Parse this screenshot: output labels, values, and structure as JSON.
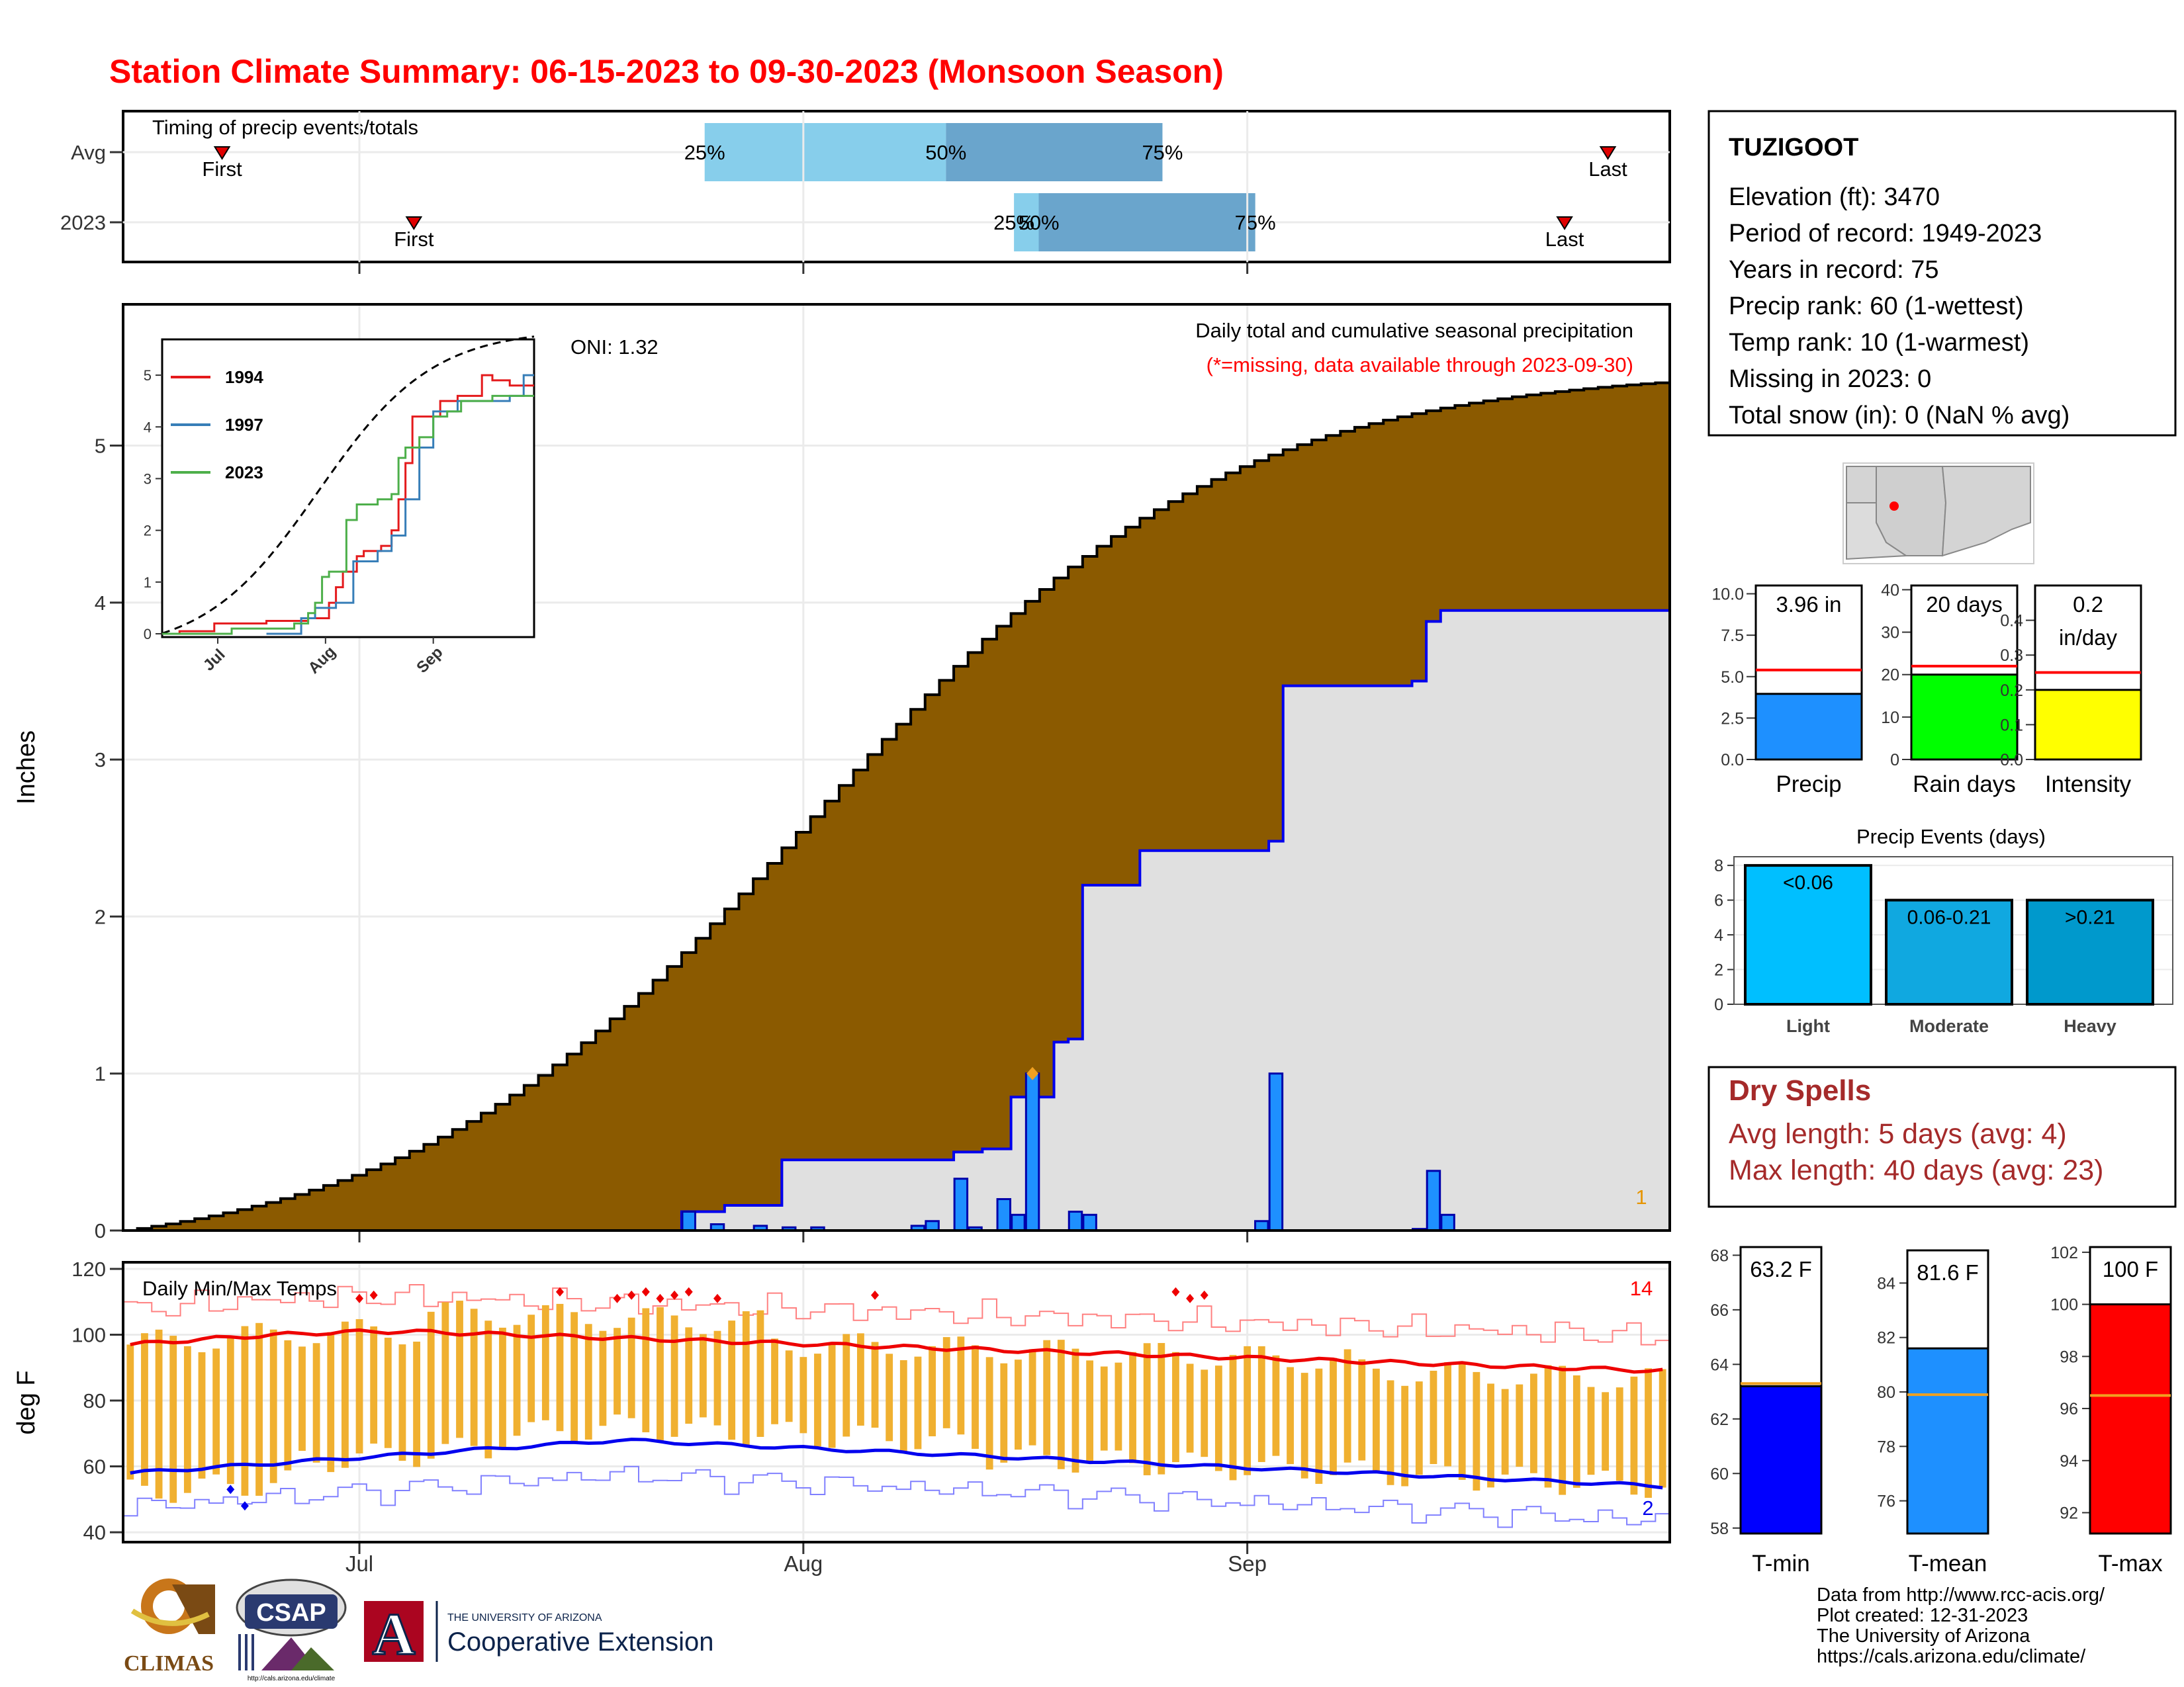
{
  "title": "Station Climate Summary: 06-15-2023 to 09-30-2023 (Monsoon Season)",
  "colors": {
    "title_red": "#ff0000",
    "precip_brown": "#8b5a00",
    "precip_fill_grey": "#e0e0e0",
    "obs_blue": "#1e90ff",
    "line_blue": "#0000ee",
    "temp_bar": "#f0b030",
    "avg_max_red": "#ee0000",
    "dark_red": "#a52a2a"
  },
  "timing": {
    "title": "Timing of precip events/totals",
    "rows": [
      {
        "label": "Avg",
        "first_day": 16,
        "p25_day": 94,
        "p50_day": 133,
        "p75_day": 168,
        "last_day": 240,
        "p25_label": "25%",
        "p50_label": "50%",
        "p75_label": "75%",
        "first_label": "First",
        "last_label": "Last"
      },
      {
        "label": "2023",
        "first_day": 47,
        "p25_day": 144,
        "p50_day": 148,
        "p75_day": 183,
        "last_day": 233,
        "p25_label": "25%",
        "p50_label": "50%",
        "p75_label": "75%",
        "first_label": "First",
        "last_label": "Last"
      }
    ]
  },
  "precip_panel": {
    "ylabel": "Inches",
    "header": "Daily total and cumulative seasonal precipitation",
    "subheader": "(*=missing, data available through 2023-09-30)",
    "oni": "ONI: 1.32",
    "corner_count": "1",
    "month_labels": [
      "Jul",
      "Aug",
      "Sep"
    ],
    "month_day_index": [
      16,
      47,
      78
    ],
    "yticks": [
      0,
      1,
      2,
      3,
      4,
      5
    ],
    "ylim": [
      0,
      5.9
    ],
    "avg_cum_end": 5.4,
    "obs_cum_steps": [
      [
        0,
        0
      ],
      [
        39,
        0.12
      ],
      [
        42,
        0.16
      ],
      [
        46,
        0.45
      ],
      [
        55,
        0.45
      ],
      [
        58,
        0.5
      ],
      [
        60,
        0.52
      ],
      [
        62,
        0.85
      ],
      [
        65,
        1.2
      ],
      [
        66,
        1.22
      ],
      [
        67,
        2.2
      ],
      [
        70,
        2.2
      ],
      [
        71,
        2.42
      ],
      [
        79,
        2.42
      ],
      [
        80,
        2.48
      ],
      [
        81,
        3.47
      ],
      [
        89,
        3.47
      ],
      [
        90,
        3.5
      ],
      [
        91,
        3.88
      ],
      [
        92,
        3.95
      ],
      [
        106,
        3.95
      ]
    ],
    "daily_bars": [
      [
        39,
        0.12
      ],
      [
        41,
        0.04
      ],
      [
        44,
        0.03
      ],
      [
        46,
        0.02
      ],
      [
        48,
        0.02
      ],
      [
        55,
        0.03
      ],
      [
        56,
        0.06
      ],
      [
        58,
        0.33
      ],
      [
        59,
        0.02
      ],
      [
        61,
        0.2
      ],
      [
        62,
        0.1
      ],
      [
        63,
        1.0
      ],
      [
        66,
        0.12
      ],
      [
        67,
        0.1
      ],
      [
        79,
        0.06
      ],
      [
        80,
        1.0
      ],
      [
        90,
        0.01
      ],
      [
        91,
        0.38
      ],
      [
        92,
        0.1
      ]
    ],
    "max_marker_day": 63
  },
  "inset": {
    "yticks": [
      0,
      1,
      2,
      3,
      4,
      5
    ],
    "xticks": [
      "Jul",
      "Aug",
      "Sep"
    ],
    "legend": [
      {
        "name": "1994",
        "color": "#e41a1c"
      },
      {
        "name": "1997",
        "color": "#377eb8"
      },
      {
        "name": "2023",
        "color": "#4daf4a"
      }
    ]
  },
  "temp_panel": {
    "ylabel": "deg F",
    "title": "Daily Min/Max Temps",
    "yticks": [
      40,
      60,
      80,
      100,
      120
    ],
    "ylim": [
      37,
      122
    ],
    "record_high_count": "14",
    "record_low_count": "2",
    "avg_max_start": 97,
    "avg_max_peak": 101,
    "avg_max_end": 89,
    "avg_min_start": 58,
    "avg_min_peak": 68,
    "avg_min_end": 54
  },
  "station": {
    "name": "TUZIGOOT",
    "lines": [
      "Elevation (ft): 3470",
      "Period of record: 1949-2023",
      "Years in record: 75",
      "Precip rank: 60 (1-wettest)",
      "Temp rank: 10 (1-warmest)",
      "Missing in 2023: 0",
      "Total snow (in): 0 (NaN % avg)"
    ]
  },
  "gauges": [
    {
      "label": "Precip",
      "value_text": "3.96 in",
      "value": 3.96,
      "avg": 5.4,
      "ymin": 0,
      "ymax": 10.5,
      "ticks": [
        "0.0",
        "2.5",
        "5.0",
        "7.5",
        "10.0"
      ],
      "tickvals": [
        0,
        2.5,
        5,
        7.5,
        10
      ],
      "color": "#1e90ff"
    },
    {
      "label": "Rain days",
      "value_text": "20 days",
      "value": 20,
      "avg": 22,
      "ymin": 0,
      "ymax": 41,
      "ticks": [
        "0",
        "10",
        "20",
        "30",
        "40"
      ],
      "tickvals": [
        0,
        10,
        20,
        30,
        40
      ],
      "color": "#00ff00"
    },
    {
      "label": "Intensity",
      "value_text": "0.2",
      "value_text2": "in/day",
      "value": 0.2,
      "avg": 0.25,
      "ymin": 0,
      "ymax": 0.5,
      "ticks": [
        "0.0",
        "0.1",
        "0.2",
        "0.3",
        "0.4"
      ],
      "tickvals": [
        0,
        0.1,
        0.2,
        0.3,
        0.4
      ],
      "color": "#ffff00"
    }
  ],
  "events": {
    "title": "Precip Events (days)",
    "yticks": [
      0,
      2,
      4,
      6,
      8
    ],
    "bars": [
      {
        "category": "Light",
        "label": "<0.06",
        "value": 8,
        "color": "#00bfff"
      },
      {
        "category": "Moderate",
        "label": "0.06-0.21",
        "value": 6,
        "color": "#10a8e0"
      },
      {
        "category": "Heavy",
        "label": ">0.21",
        "value": 6,
        "color": "#0099cc"
      }
    ]
  },
  "dry_spells": {
    "title": "Dry Spells",
    "avg_line": "Avg length: 5 days (avg: 4)",
    "max_line": "Max length: 40 days (avg: 23)"
  },
  "temp_gauges": [
    {
      "label": "T-min",
      "value_text": "63.2 F",
      "value": 63.2,
      "avg": 63.3,
      "ymin": 57.8,
      "ymax": 68.3,
      "tickvals": [
        58,
        60,
        62,
        64,
        66,
        68
      ],
      "color": "#0000ff"
    },
    {
      "label": "T-mean",
      "value_text": "81.6 F",
      "value": 81.6,
      "avg": 79.9,
      "ymin": 74.8,
      "ymax": 85.2,
      "tickvals": [
        76,
        78,
        80,
        82,
        84
      ],
      "color": "#1e90ff"
    },
    {
      "label": "T-max",
      "value_text": "100 F",
      "value": 100,
      "avg": 96.5,
      "ymin": 91.2,
      "ymax": 102.2,
      "tickvals": [
        92,
        94,
        96,
        98,
        100,
        102
      ],
      "color": "#ff0000"
    }
  ],
  "credits": [
    "Data from http://www.rcc-acis.org/",
    "Plot created: 12-31-2023",
    "The University of Arizona",
    "https://cals.arizona.edu/climate/"
  ],
  "logos": {
    "climas": "CLIMAS",
    "csap": "CSAP",
    "csap_url": "http://cals.arizona.edu/climate",
    "ua_letter": "A",
    "ua_small": "THE UNIVERSITY OF ARIZONA",
    "ua_big": "Cooperative Extension"
  },
  "chart_data": [
    {
      "type": "bar",
      "title": "Timing of precip events/totals",
      "categories": [
        "Avg",
        "2023"
      ],
      "series": [
        {
          "name": "25%",
          "values": [
            94,
            144
          ]
        },
        {
          "name": "50%",
          "values": [
            133,
            148
          ]
        },
        {
          "name": "75%",
          "values": [
            168,
            183
          ]
        }
      ]
    },
    {
      "type": "area",
      "title": "Daily total and cumulative seasonal precipitation",
      "ylabel": "Inches",
      "ylim": [
        0,
        5.9
      ]
    },
    {
      "type": "bar",
      "title": "Daily Min/Max Temps",
      "ylabel": "deg F",
      "ylim": [
        37,
        122
      ]
    },
    {
      "type": "bar",
      "title": "Precip Events (days)",
      "categories": [
        "Light",
        "Moderate",
        "Heavy"
      ],
      "values": [
        8,
        6,
        6
      ]
    }
  ]
}
